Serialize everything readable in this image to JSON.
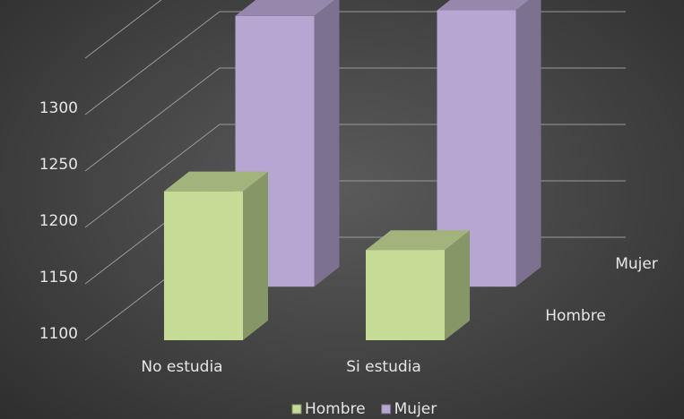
{
  "chart_data": {
    "type": "bar",
    "categories": [
      "No estudia",
      "Si estudia"
    ],
    "series": [
      {
        "name": "Hombre",
        "values": [
          1232,
          1180
        ],
        "color": "#c6dc96"
      },
      {
        "name": "Mujer",
        "values": [
          1340,
          1345
        ],
        "color": "#b6a6d2"
      }
    ],
    "yticks": [
      1100,
      1150,
      1200,
      1250,
      1300
    ],
    "ylim": [
      1100,
      1350
    ],
    "grid": true,
    "legend_position": "bottom",
    "title": "",
    "xlabel": "",
    "ylabel": ""
  },
  "legend": {
    "items": [
      "Hombre",
      "Mujer"
    ]
  },
  "depth_axis": {
    "labels": [
      "Mujer",
      "Hombre"
    ]
  }
}
